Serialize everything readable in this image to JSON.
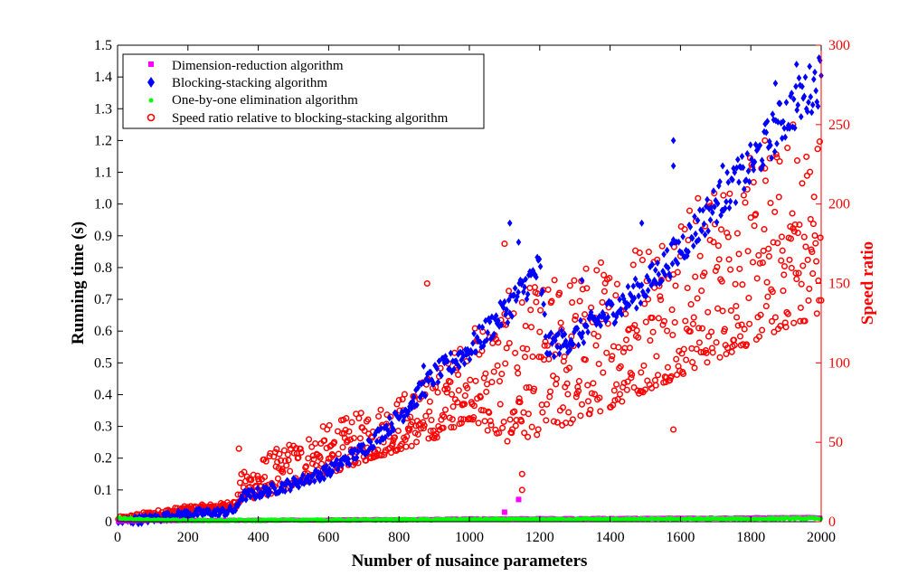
{
  "chart_data": {
    "type": "scatter",
    "title": "",
    "xlabel": "Number of nusaince parameters",
    "ylabel_left": "Running time (s)",
    "ylabel_right": "Speed ratio",
    "xlim": [
      0,
      2000
    ],
    "ylim_left": [
      0,
      1.5
    ],
    "ylim_right": [
      0,
      300
    ],
    "x_ticks": [
      "0",
      "200",
      "400",
      "600",
      "800",
      "1000",
      "1200",
      "1400",
      "1600",
      "1800",
      "2000"
    ],
    "y_left_ticks": [
      "0",
      "0.1",
      "0.2",
      "0.3",
      "0.4",
      "0.5",
      "0.6",
      "0.7",
      "0.8",
      "0.9",
      "1.0",
      "1.1",
      "1.2",
      "1.3",
      "1.4",
      "1.5"
    ],
    "y_right_ticks": [
      "0",
      "50",
      "100",
      "150",
      "200",
      "250",
      "300"
    ],
    "grid": false,
    "legend_position": "top-left",
    "colors": {
      "left_axis": "#000000",
      "right_axis": "#ff0000",
      "dimension_reduction": "#ff00ff",
      "blocking_stacking": "#0000ff",
      "one_by_one": "#00ff00",
      "speed_ratio": "#ff0000"
    },
    "legend": [
      "Dimension-reduction algorithm",
      "Blocking-stacking algorithm",
      "One-by-one elimination algorithm",
      "Speed ratio relative to blocking-stacking algorithm"
    ],
    "series": [
      {
        "name": "Dimension-reduction algorithm",
        "axis": "left",
        "marker": "square",
        "color": "#ff00ff",
        "x": [
          0,
          100,
          200,
          300,
          400,
          500,
          600,
          700,
          800,
          900,
          1000,
          1100,
          1140,
          1200,
          1300,
          1400,
          1500,
          1600,
          1700,
          1800,
          1900,
          2000
        ],
        "y": [
          0.001,
          0.002,
          0.002,
          0.003,
          0.003,
          0.004,
          0.004,
          0.005,
          0.005,
          0.006,
          0.007,
          0.008,
          0.07,
          0.008,
          0.008,
          0.009,
          0.009,
          0.01,
          0.01,
          0.011,
          0.011,
          0.012
        ]
      },
      {
        "name": "Blocking-stacking algorithm",
        "axis": "left",
        "marker": "diamond",
        "color": "#0000ff",
        "x": [
          0,
          100,
          200,
          300,
          340,
          350,
          400,
          500,
          600,
          700,
          800,
          900,
          1000,
          1100,
          1200,
          1220,
          1300,
          1400,
          1500,
          1600,
          1700,
          1800,
          1900,
          2000
        ],
        "y": [
          0.0,
          0.01,
          0.025,
          0.03,
          0.04,
          0.08,
          0.09,
          0.12,
          0.16,
          0.23,
          0.33,
          0.46,
          0.54,
          0.66,
          0.8,
          0.55,
          0.58,
          0.66,
          0.74,
          0.86,
          1.0,
          1.12,
          1.28,
          1.4
        ],
        "outliers_x": [
          870,
          1115,
          1140,
          1320,
          1490,
          1580,
          1580,
          1720,
          1870,
          1930
        ],
        "outliers_y": [
          0.49,
          0.94,
          0.88,
          0.76,
          0.94,
          1.2,
          1.12,
          1.12,
          1.38,
          1.44
        ]
      },
      {
        "name": "One-by-one elimination algorithm",
        "axis": "left",
        "marker": "dot",
        "color": "#00ff00",
        "x": [
          0,
          100,
          200,
          300,
          400,
          500,
          600,
          700,
          800,
          900,
          1000,
          1100,
          1200,
          1300,
          1400,
          1500,
          1600,
          1700,
          1800,
          1900,
          2000
        ],
        "y": [
          0.012,
          0.005,
          0.004,
          0.004,
          0.004,
          0.005,
          0.005,
          0.005,
          0.006,
          0.006,
          0.007,
          0.007,
          0.007,
          0.008,
          0.008,
          0.008,
          0.009,
          0.009,
          0.009,
          0.01,
          0.01
        ]
      },
      {
        "name": "Speed ratio relative to blocking-stacking algorithm",
        "axis": "right",
        "marker": "circle",
        "color": "#ff0000",
        "x": [
          0,
          100,
          200,
          300,
          340,
          350,
          400,
          500,
          600,
          700,
          800,
          900,
          1000,
          1100,
          1200,
          1300,
          1400,
          1500,
          1600,
          1700,
          1800,
          1900,
          2000
        ],
        "y_lower": [
          0,
          3,
          6,
          8,
          9,
          14,
          15,
          22,
          30,
          38,
          45,
          52,
          65,
          50,
          55,
          62,
          72,
          82,
          92,
          102,
          112,
          122,
          130
        ],
        "y_upper": [
          3,
          7,
          10,
          12,
          15,
          30,
          40,
          52,
          62,
          70,
          80,
          95,
          120,
          145,
          150,
          162,
          170,
          185,
          200,
          215,
          230,
          240,
          250
        ],
        "outliers_x": [
          345,
          880,
          1100,
          1150,
          1150,
          1580,
          1840,
          1920
        ],
        "outliers_y": [
          46,
          150,
          175,
          20,
          30,
          58,
          240,
          250
        ]
      }
    ]
  }
}
